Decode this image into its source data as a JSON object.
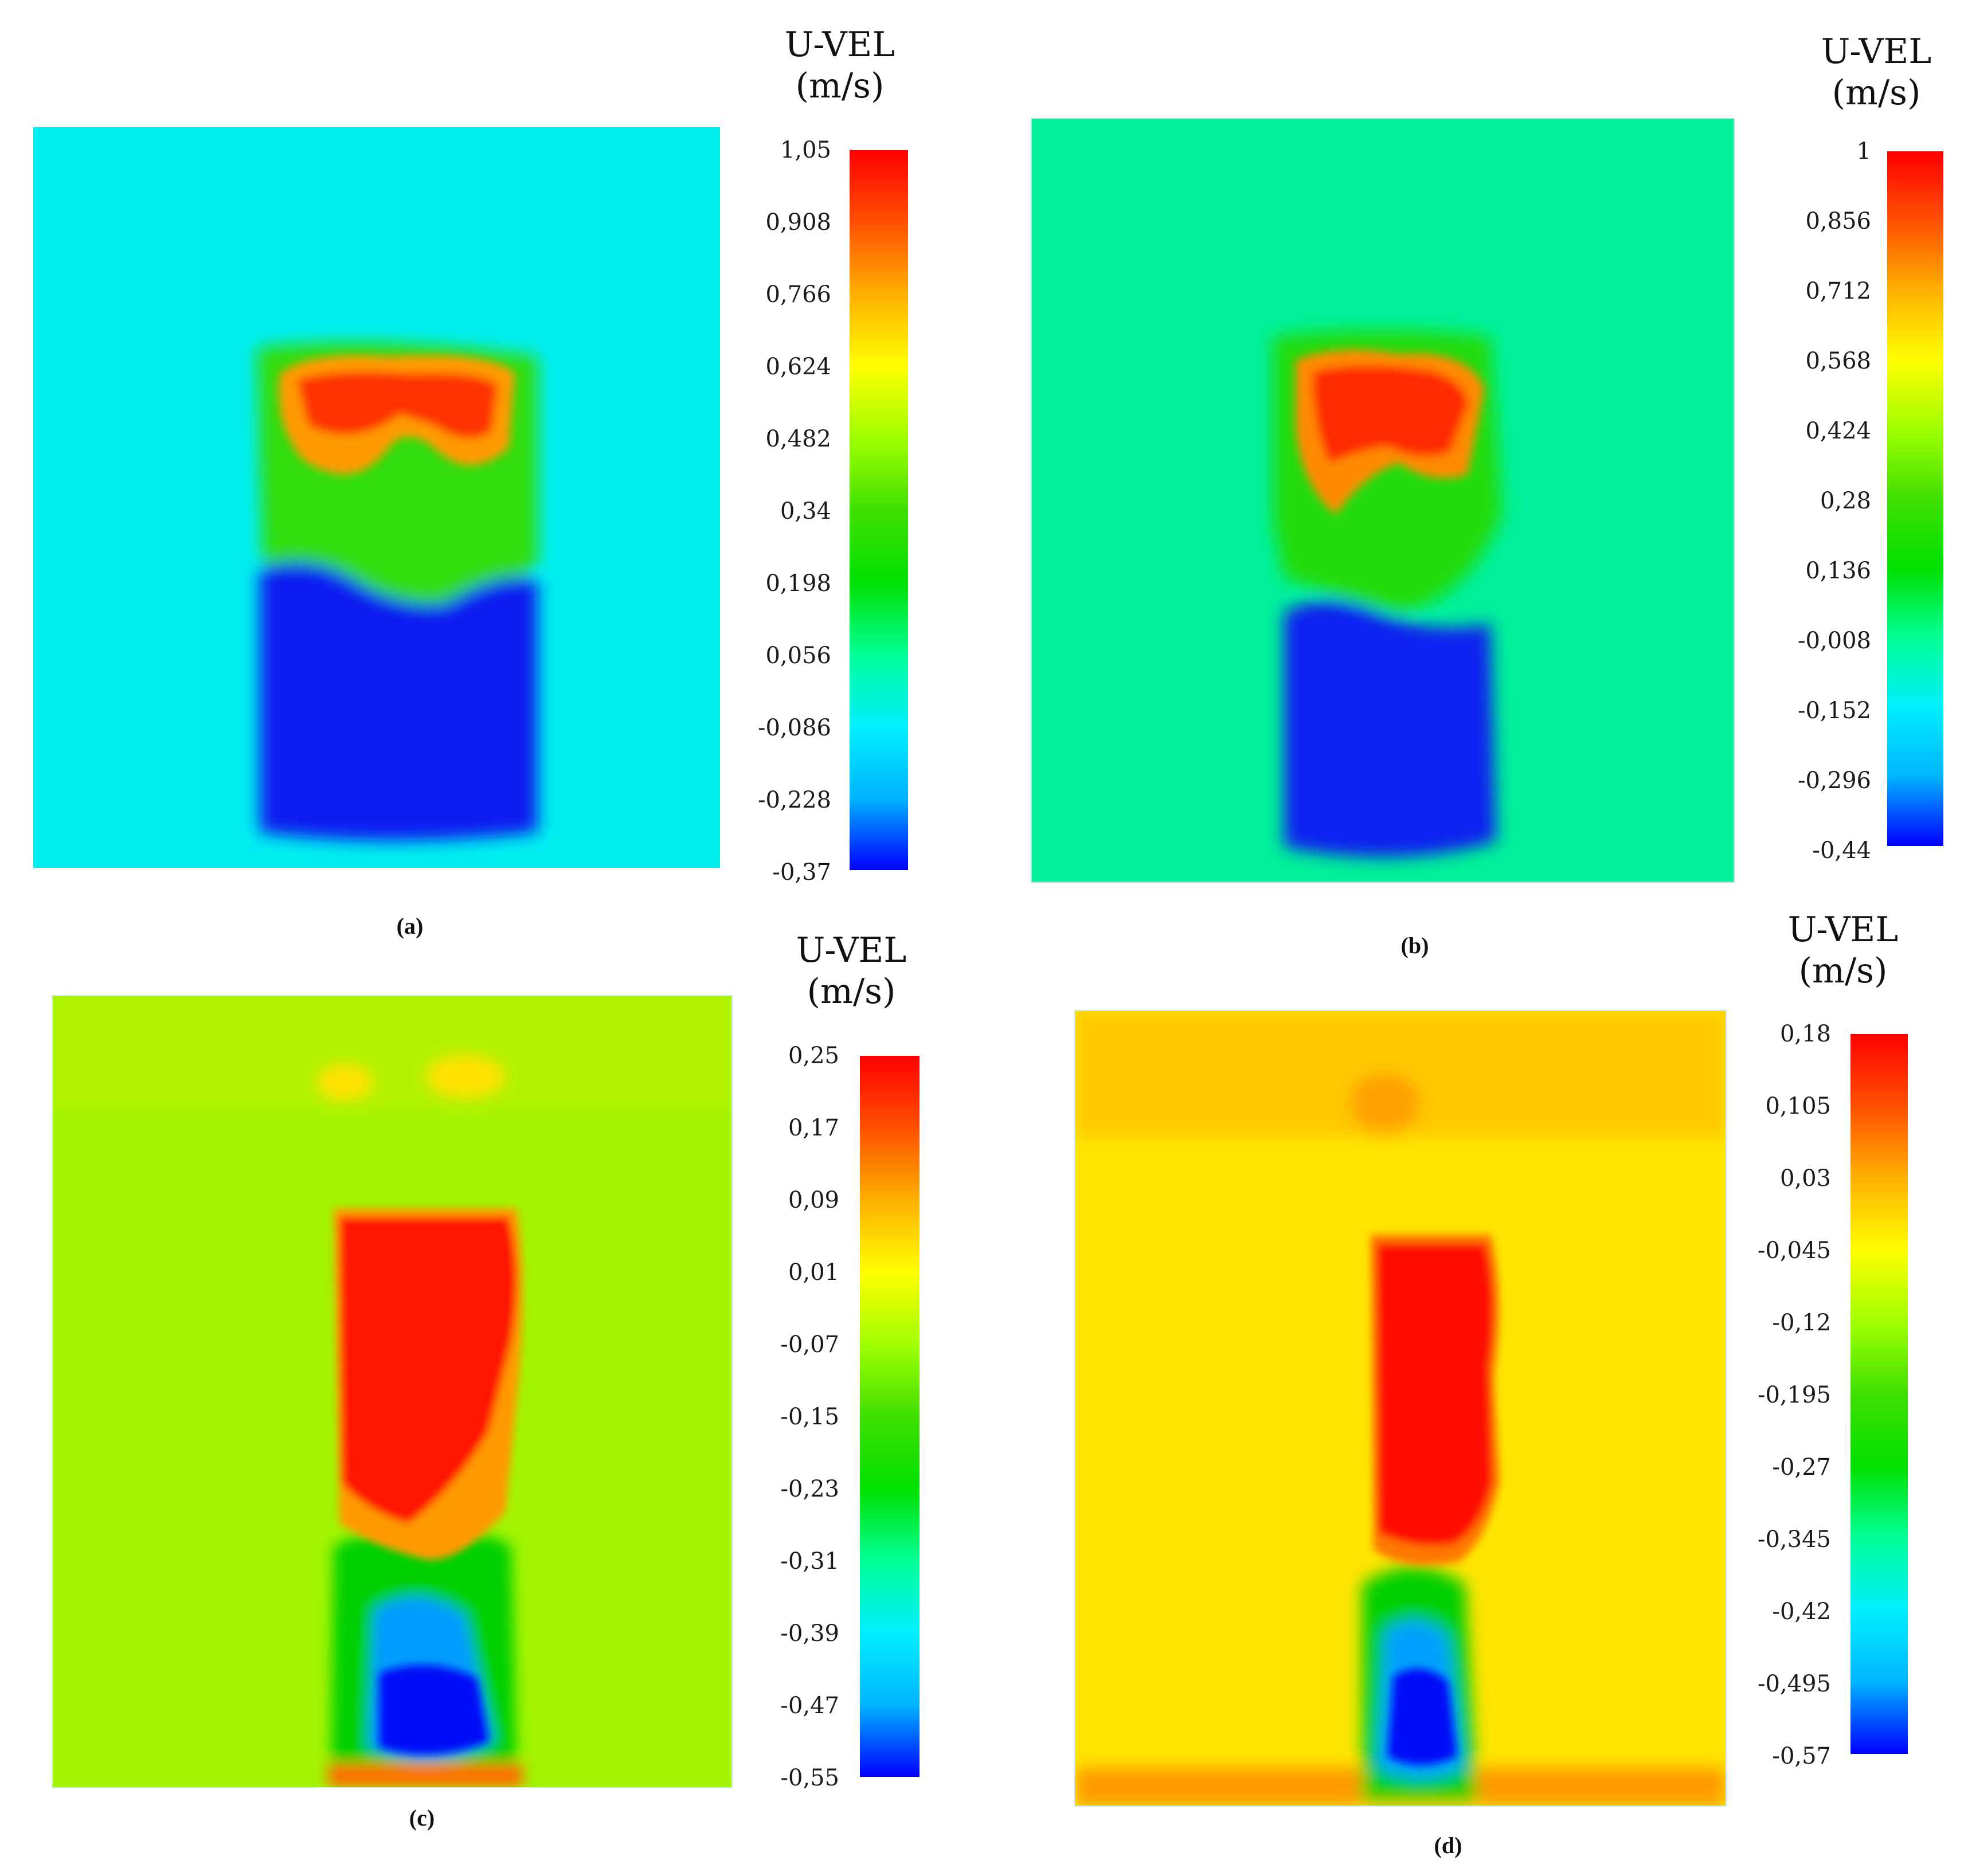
{
  "figure": {
    "panel_ids": [
      "a",
      "b",
      "c",
      "d"
    ]
  },
  "colormap": [
    "#0000ff",
    "#00b4ff",
    "#00f0ff",
    "#00ff96",
    "#00e000",
    "#40e000",
    "#a0ff00",
    "#ffff00",
    "#ffb000",
    "#ff5000",
    "#ff0000"
  ],
  "chart_data": [
    {
      "type": "heatmap",
      "panel": "a",
      "caption": "(a)",
      "title_line1": "U-VEL",
      "title_line2": "(m/s)",
      "range": [
        -0.37,
        1.05
      ],
      "ticks": [
        "1,05",
        "0,908",
        "0,766",
        "0,624",
        "0,482",
        "0,34",
        "0,198",
        "0,056",
        "-0,086",
        "-0,228",
        "-0,37"
      ],
      "regions": [
        {
          "name": "background",
          "value": -0.05
        },
        {
          "name": "upper jet",
          "value": 1.0
        },
        {
          "name": "transition zone",
          "value": 0.38
        },
        {
          "name": "lower reverse flow",
          "value": -0.37
        }
      ]
    },
    {
      "type": "heatmap",
      "panel": "b",
      "caption": "(b)",
      "title_line1": "U-VEL",
      "title_line2": "(m/s)",
      "range": [
        -0.44,
        1.0
      ],
      "ticks": [
        "1",
        "0,856",
        "0,712",
        "0,568",
        "0,424",
        "0,28",
        "0,136",
        "-0,008",
        "-0,152",
        "-0,296",
        "-0,44"
      ],
      "regions": [
        {
          "name": "background",
          "value": 0.05
        },
        {
          "name": "upper jet",
          "value": 0.95
        },
        {
          "name": "transition zone",
          "value": 0.3
        },
        {
          "name": "lower reverse flow",
          "value": -0.44
        }
      ]
    },
    {
      "type": "heatmap",
      "panel": "c",
      "caption": "(c)",
      "title_line1": "U-VEL",
      "title_line2": "(m/s)",
      "range": [
        -0.55,
        0.25
      ],
      "ticks": [
        "0,25",
        "0,17",
        "0,09",
        "0,01",
        "-0,07",
        "-0,15",
        "-0,23",
        "-0,31",
        "-0,39",
        "-0,47",
        "-0,55"
      ],
      "regions": [
        {
          "name": "background",
          "value": 0.0
        },
        {
          "name": "upper jet",
          "value": 0.25
        },
        {
          "name": "transition zone",
          "value": -0.12
        },
        {
          "name": "lower reverse flow",
          "value": -0.55
        }
      ]
    },
    {
      "type": "heatmap",
      "panel": "d",
      "caption": "(d)",
      "title_line1": "U-VEL",
      "title_line2": "(m/s)",
      "range": [
        -0.57,
        0.18
      ],
      "ticks": [
        "0,18",
        "0,105",
        "0,03",
        "-0,045",
        "-0,12",
        "-0,195",
        "-0,27",
        "-0,345",
        "-0,42",
        "-0,495",
        "-0,57"
      ],
      "regions": [
        {
          "name": "background",
          "value": 0.0
        },
        {
          "name": "upper jet",
          "value": 0.18
        },
        {
          "name": "transition zone",
          "value": -0.16
        },
        {
          "name": "lower reverse flow",
          "value": -0.57
        }
      ]
    }
  ]
}
